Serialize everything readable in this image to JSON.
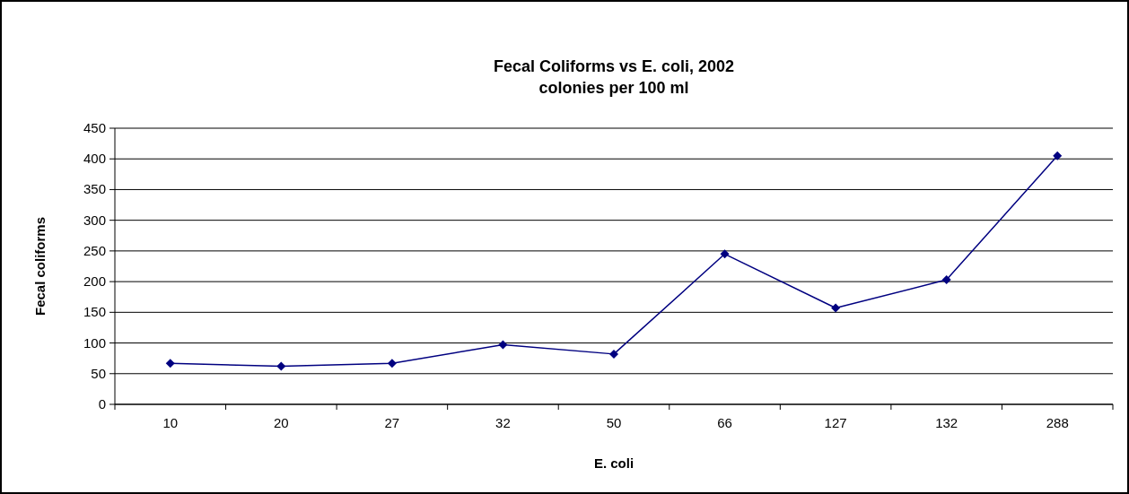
{
  "chart_data": {
    "type": "line",
    "title": "Fecal Coliforms vs E. coli, 2002\ncolonies per 100 ml",
    "xlabel": "E. coli",
    "ylabel": "Fecal coliforms",
    "categories": [
      "10",
      "20",
      "27",
      "32",
      "50",
      "66",
      "127",
      "132",
      "288"
    ],
    "series": [
      {
        "color": "#000080",
        "values": [
          67,
          62,
          67,
          97,
          82,
          245,
          157,
          203,
          405
        ]
      }
    ],
    "ylim": [
      0,
      450
    ],
    "yticks": [
      0,
      50,
      100,
      150,
      200,
      250,
      300,
      350,
      400,
      450
    ],
    "grid": "y",
    "marker": "diamond",
    "line_style": "solid"
  }
}
